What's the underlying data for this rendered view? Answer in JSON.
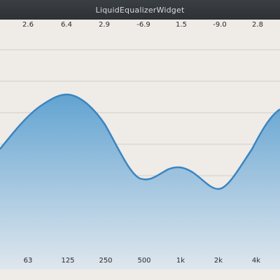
{
  "window": {
    "title": "LiquidEqualizerWidget"
  },
  "bands": [
    {
      "gain": "2.6",
      "freq": "63"
    },
    {
      "gain": "6.4",
      "freq": "125"
    },
    {
      "gain": "2.9",
      "freq": "250"
    },
    {
      "gain": "-6.9",
      "freq": "500"
    },
    {
      "gain": "1.5",
      "freq": "1k"
    },
    {
      "gain": "-9.0",
      "freq": "2k"
    },
    {
      "gain": "2.8",
      "freq": "4k"
    }
  ],
  "colors": {
    "curve": "#3a85c0",
    "fill_top": "#5a9fd0",
    "fill_bottom": "#dfe7ee",
    "grid": "#cfcac4",
    "background": "#efebe7",
    "titlebar": "#33373b"
  }
}
